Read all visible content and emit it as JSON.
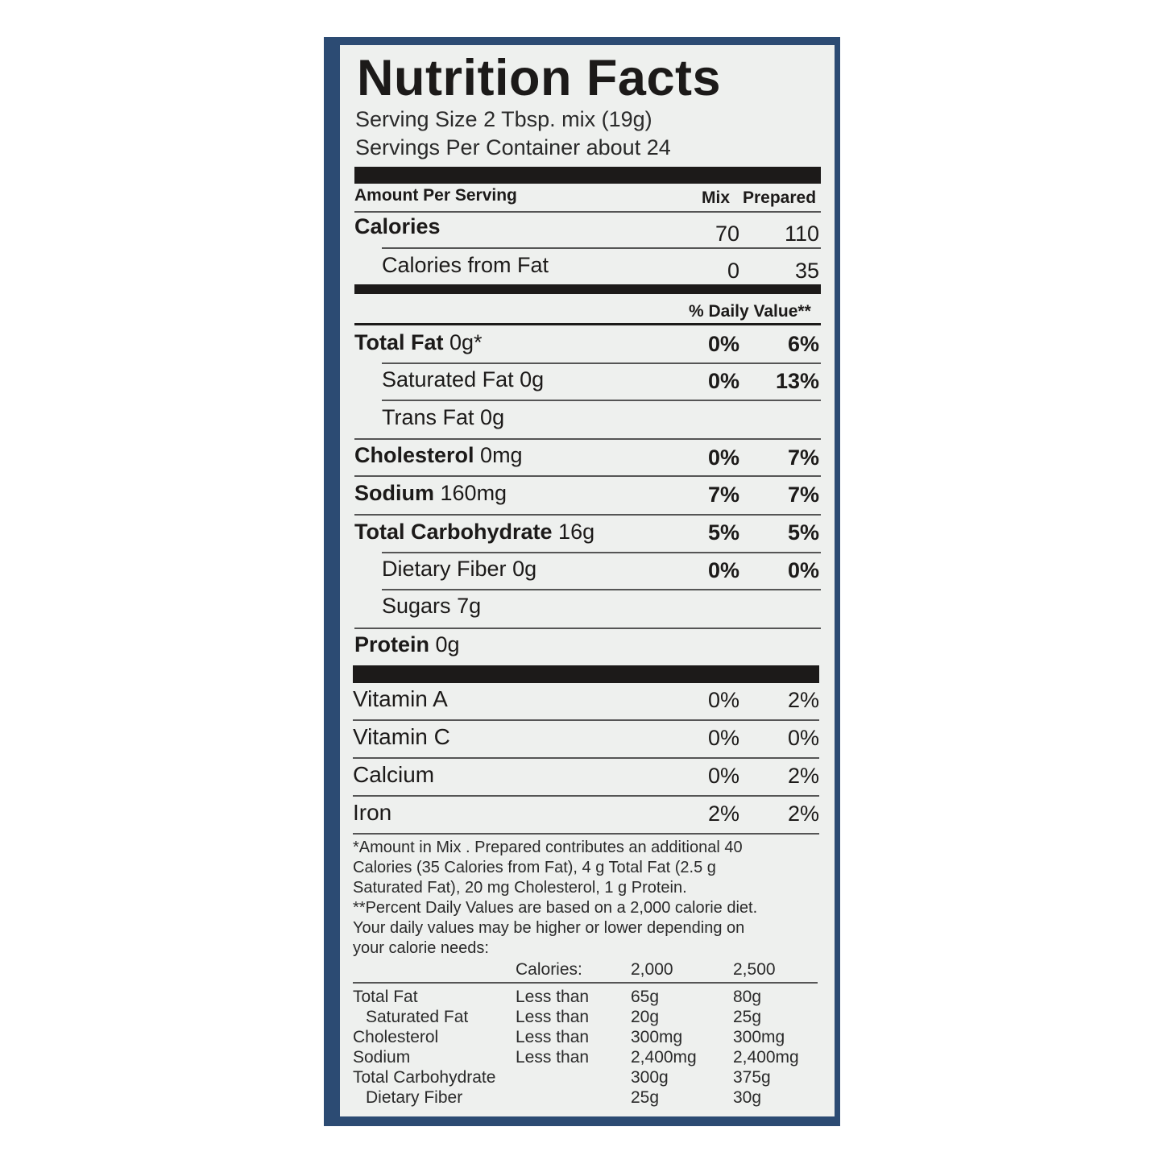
{
  "title": "Nutrition Facts",
  "serving_size": "Serving Size 2 Tbsp. mix (19g)",
  "servings_per_container": "Servings Per Container about 24",
  "header": {
    "amount_per_serving": "Amount Per Serving",
    "mix": "Mix",
    "prepared": "Prepared"
  },
  "calories": {
    "label": "Calories",
    "mix": "70",
    "prepared": "110"
  },
  "calories_from_fat": {
    "label": "Calories from Fat",
    "mix": "0",
    "prepared": "35"
  },
  "daily_value_header": "% Daily Value**",
  "nutrients": [
    {
      "name": "Total Fat",
      "amount": "0g*",
      "mix": "0%",
      "prepared": "6%"
    },
    {
      "name": "Saturated Fat",
      "amount": "0g",
      "mix": "0%",
      "prepared": "13%"
    },
    {
      "name": "Trans Fat",
      "amount": "0g",
      "mix": "",
      "prepared": ""
    },
    {
      "name": "Cholesterol",
      "amount": "0mg",
      "mix": "0%",
      "prepared": "7%"
    },
    {
      "name": "Sodium",
      "amount": "160mg",
      "mix": "7%",
      "prepared": "7%"
    },
    {
      "name": "Total Carbohydrate",
      "amount": "16g",
      "mix": "5%",
      "prepared": "5%"
    },
    {
      "name": "Dietary Fiber",
      "amount": "0g",
      "mix": "0%",
      "prepared": "0%"
    },
    {
      "name": "Sugars",
      "amount": "7g",
      "mix": "",
      "prepared": ""
    },
    {
      "name": "Protein",
      "amount": "0g",
      "mix": "",
      "prepared": ""
    }
  ],
  "vitamins": [
    {
      "name": "Vitamin A",
      "mix": "0%",
      "prepared": "2%"
    },
    {
      "name": "Vitamin C",
      "mix": "0%",
      "prepared": "0%"
    },
    {
      "name": "Calcium",
      "mix": "0%",
      "prepared": "2%"
    },
    {
      "name": "Iron",
      "mix": "2%",
      "prepared": "2%"
    }
  ],
  "footnote_lines": [
    "*Amount in Mix . Prepared contributes an additional 40",
    "Calories (35 Calories from Fat), 4 g Total Fat (2.5 g",
    "Saturated Fat), 20 mg Cholesterol, 1 g Protein.",
    "**Percent Daily Values are based on a 2,000 calorie diet.",
    "Your daily values may be higher or lower depending on",
    "your calorie needs:"
  ],
  "dv_table": {
    "header": [
      "Calories:",
      "2,000",
      "2,500"
    ],
    "rows": [
      [
        "Total Fat",
        "Less than",
        "65g",
        "80g"
      ],
      [
        "Saturated Fat",
        "Less than",
        "20g",
        "25g"
      ],
      [
        "Cholesterol",
        "Less than",
        "300mg",
        "300mg"
      ],
      [
        "Sodium",
        "Less than",
        "2,400mg",
        "2,400mg"
      ],
      [
        "Total Carbohydrate",
        "",
        "300g",
        "375g"
      ],
      [
        "Dietary Fiber",
        "",
        "25g",
        "30g"
      ]
    ]
  },
  "colors": {
    "frame": "#2c4b73",
    "panel": "#eef0ee",
    "ink": "#1c1a19"
  }
}
